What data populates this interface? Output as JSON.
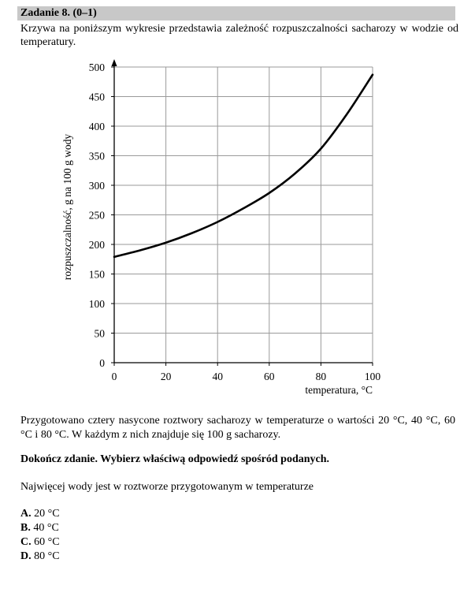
{
  "task": {
    "title": "Zadanie 8. (0–1)",
    "intro": "Krzywa na poniższym wykresie przedstawia zależność rozpuszczalności sacharozy w wodzie od temperatury."
  },
  "chart_data": {
    "type": "line",
    "title": "",
    "xlabel": "temperatura, °C",
    "ylabel": "rozpuszczalność, g na 100 g wody",
    "xlim": [
      0,
      100
    ],
    "ylim": [
      0,
      500
    ],
    "x_ticks": [
      0,
      20,
      40,
      60,
      80,
      100
    ],
    "y_ticks": [
      0,
      50,
      100,
      150,
      200,
      250,
      300,
      350,
      400,
      450,
      500
    ],
    "grid": true,
    "series": [
      {
        "name": "",
        "x": [
          0,
          10,
          20,
          30,
          40,
          50,
          60,
          70,
          80,
          90,
          100
        ],
        "y": [
          179,
          190,
          203,
          219,
          238,
          261,
          287,
          320,
          362,
          420,
          487
        ]
      }
    ]
  },
  "content": {
    "setup": "Przygotowano cztery nasycone roztwory sacharozy w temperaturze o wartości 20 °C, 40 °C, 60 °C i 80 °C. W każdym z nich znajduje się 100 g sacharozy.",
    "instruction": "Dokończ zdanie. Wybierz właściwą odpowiedź spośród podanych.",
    "question": "Najwięcej wody jest w roztworze przygotowanym w temperaturze"
  },
  "options": [
    {
      "letter": "A.",
      "text": "20 °C"
    },
    {
      "letter": "B.",
      "text": "40 °C"
    },
    {
      "letter": "C.",
      "text": "60 °C"
    },
    {
      "letter": "D.",
      "text": "80 °C"
    }
  ]
}
